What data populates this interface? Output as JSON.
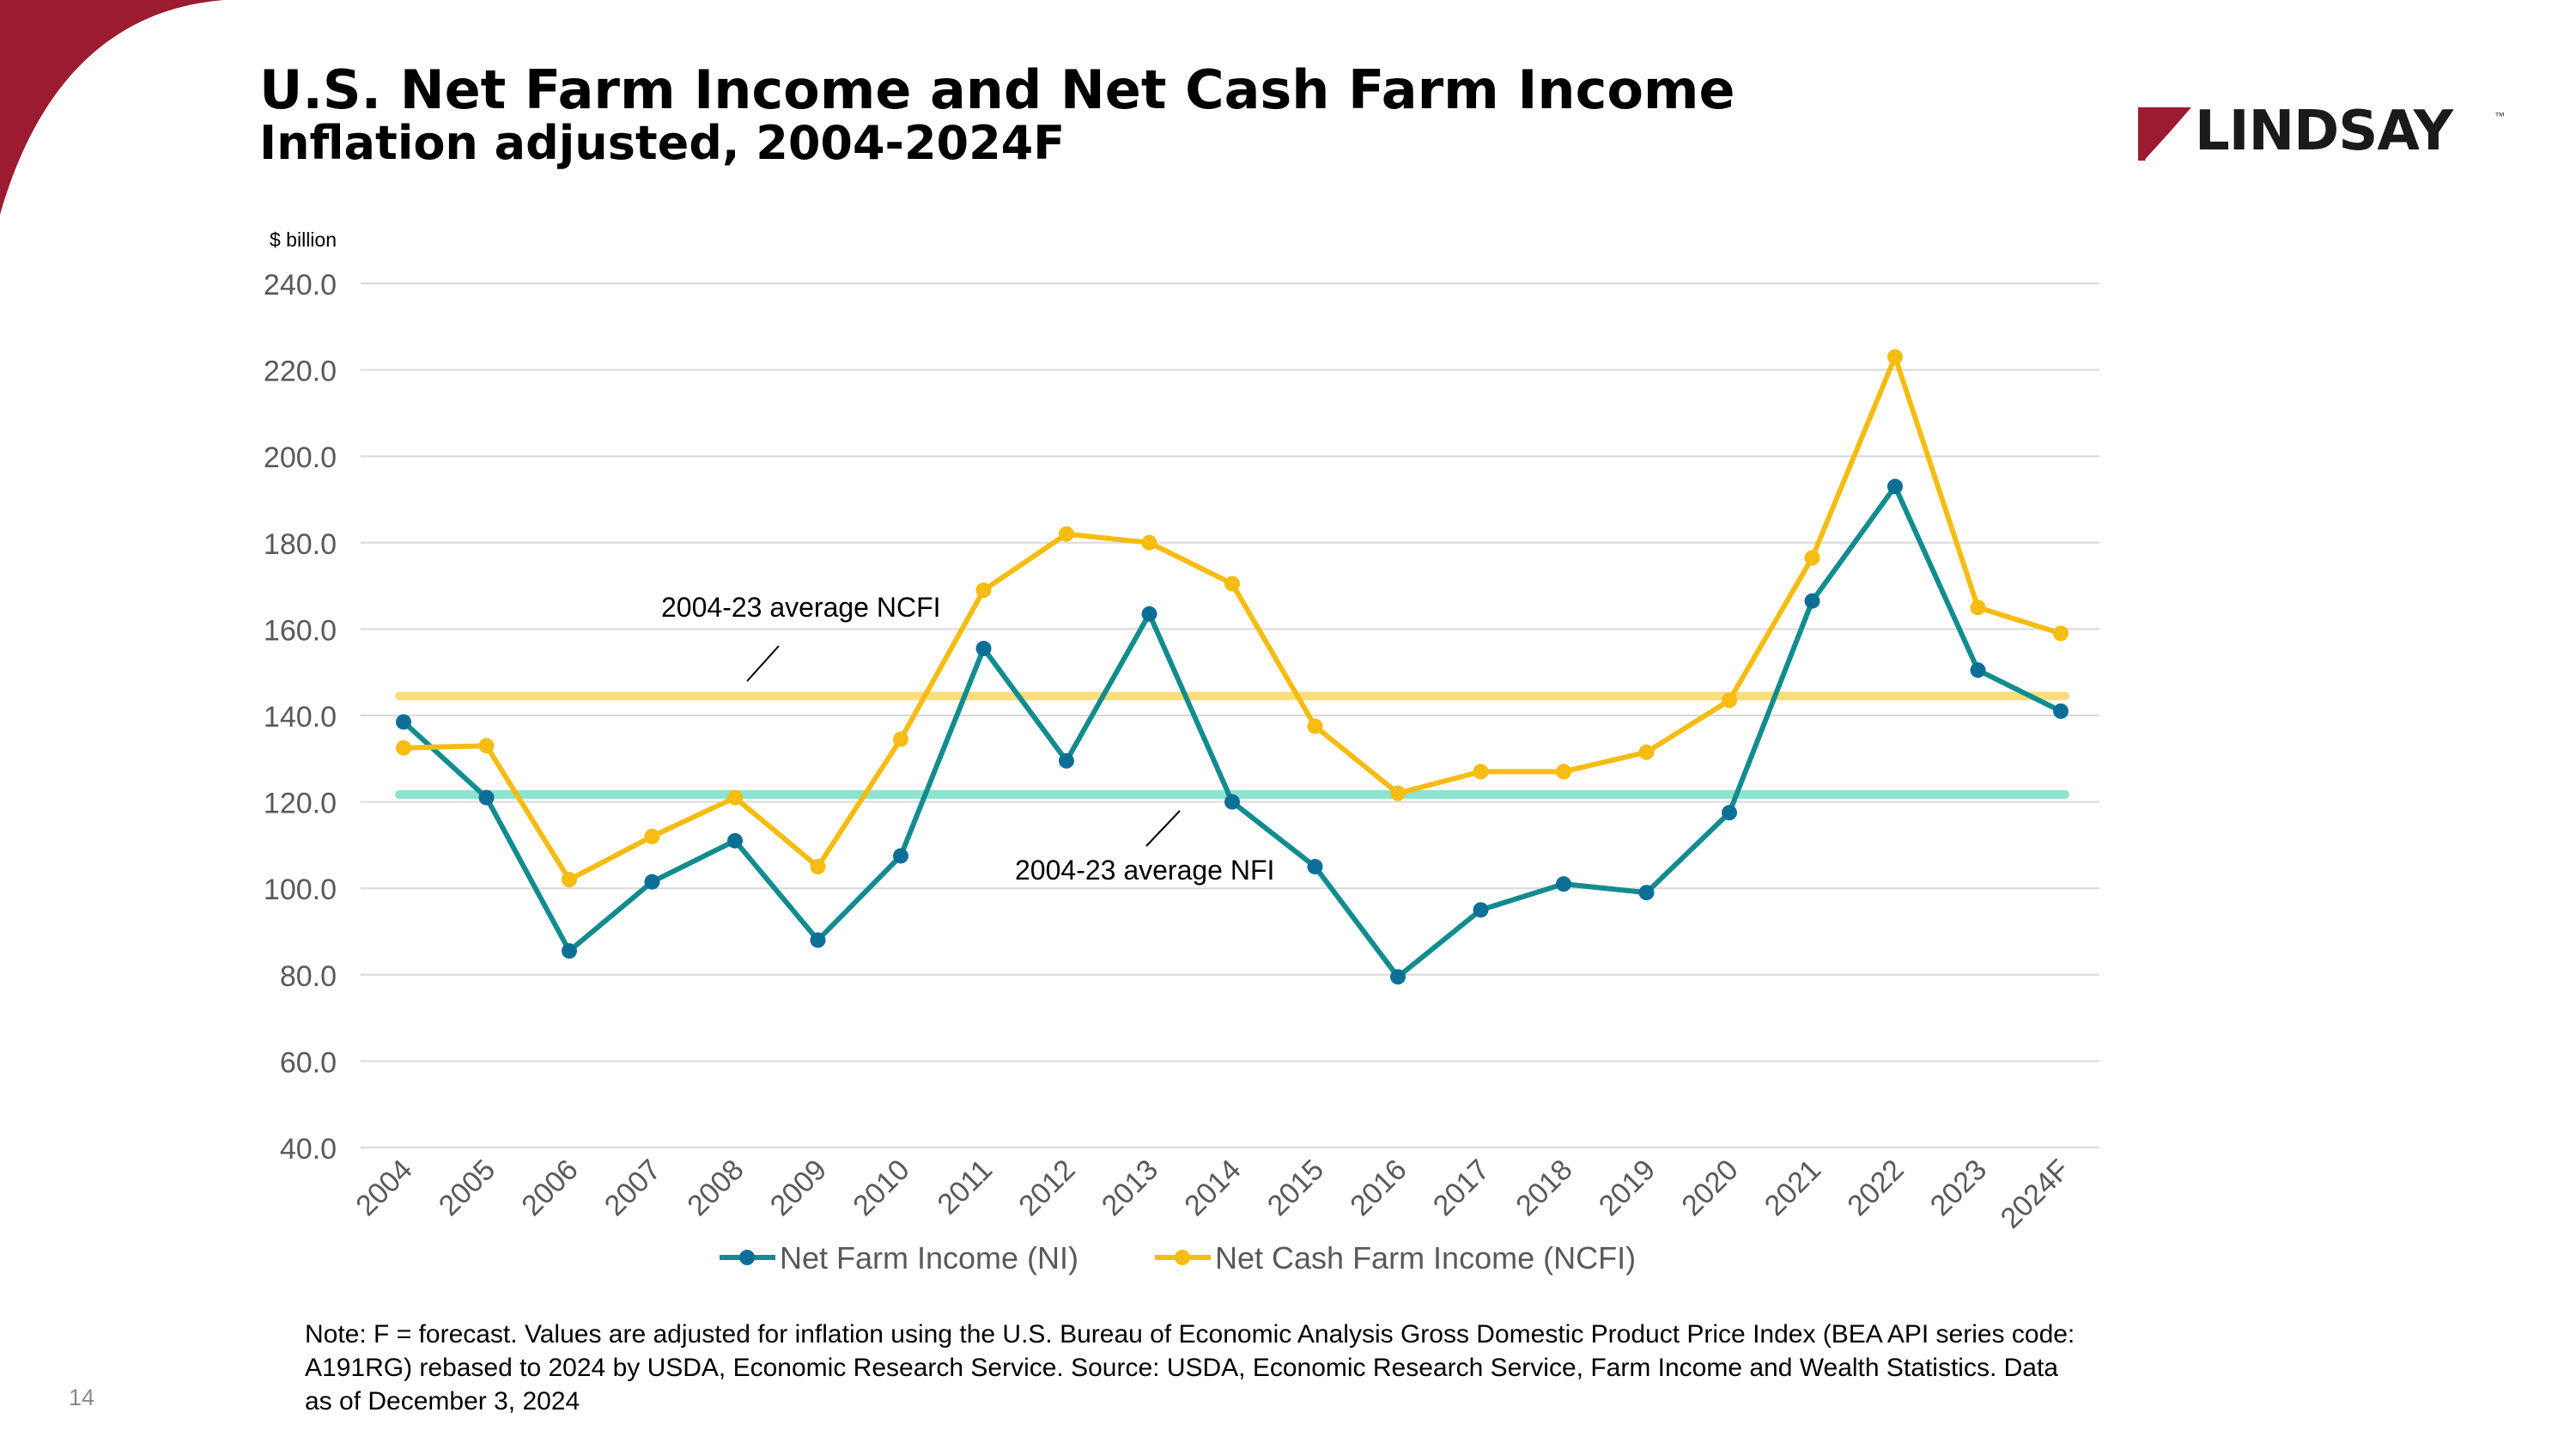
{
  "slide": {
    "title": "U.S. Net Farm Income and Net Cash Farm Income",
    "subtitle": "Inflation adjusted, 2004-2024F",
    "logo_text": "LINDSAY",
    "logo_tm": "™",
    "note": "Note: F = forecast. Values are adjusted for inflation using the U.S. Bureau of Economic Analysis Gross Domestic Product Price Index (BEA API series code: A191RG) rebased to 2024 by USDA, Economic Research Service.  Source: USDA, Economic Research Service, Farm Income and Wealth Statistics. Data as of December 3, 2024",
    "page_number": "14",
    "colors": {
      "accent": "#9B1B30",
      "ni": "#128C8E",
      "ni_marker": "#0E6F96",
      "ncfi": "#F5BC12",
      "avg_ncfi": "#F8DE7E",
      "avg_nfi": "#8EE3CF"
    }
  },
  "chart_data": {
    "type": "line",
    "unit_label": "$ billion",
    "ylim": [
      40,
      240
    ],
    "yticks": [
      240,
      220,
      200,
      180,
      160,
      140,
      120,
      100,
      80,
      60,
      40
    ],
    "ytick_labels": [
      "240.0",
      "220.0",
      "200.0",
      "180.0",
      "160.0",
      "140.0",
      "120.0",
      "100.0",
      "80.0",
      "60.0",
      "40.0"
    ],
    "categories": [
      "2004",
      "2005",
      "2006",
      "2007",
      "2008",
      "2009",
      "2010",
      "2011",
      "2012",
      "2013",
      "2014",
      "2015",
      "2016",
      "2017",
      "2018",
      "2019",
      "2020",
      "2021",
      "2022",
      "2023",
      "2024F"
    ],
    "series": [
      {
        "name": "Net Farm Income (NI)",
        "values": [
          138.5,
          121,
          85.5,
          101.5,
          111,
          88,
          107.5,
          155.5,
          129.5,
          163.5,
          120,
          105,
          79.5,
          95,
          101,
          99,
          117.5,
          166.5,
          193,
          150.5,
          141
        ]
      },
      {
        "name": "Net Cash Farm Income (NCFI)",
        "values": [
          132.5,
          133,
          102,
          112,
          121,
          105,
          134.5,
          169,
          182,
          180,
          170.5,
          137.5,
          122,
          127,
          127,
          131.5,
          143.5,
          176.5,
          223,
          165,
          159
        ]
      }
    ],
    "reference_lines": [
      {
        "label": "2004-23 average NCFI",
        "value": 144.5
      },
      {
        "label": "2004-23 average NFI",
        "value": 121.7
      }
    ],
    "legend_position": "bottom",
    "grid": true
  }
}
